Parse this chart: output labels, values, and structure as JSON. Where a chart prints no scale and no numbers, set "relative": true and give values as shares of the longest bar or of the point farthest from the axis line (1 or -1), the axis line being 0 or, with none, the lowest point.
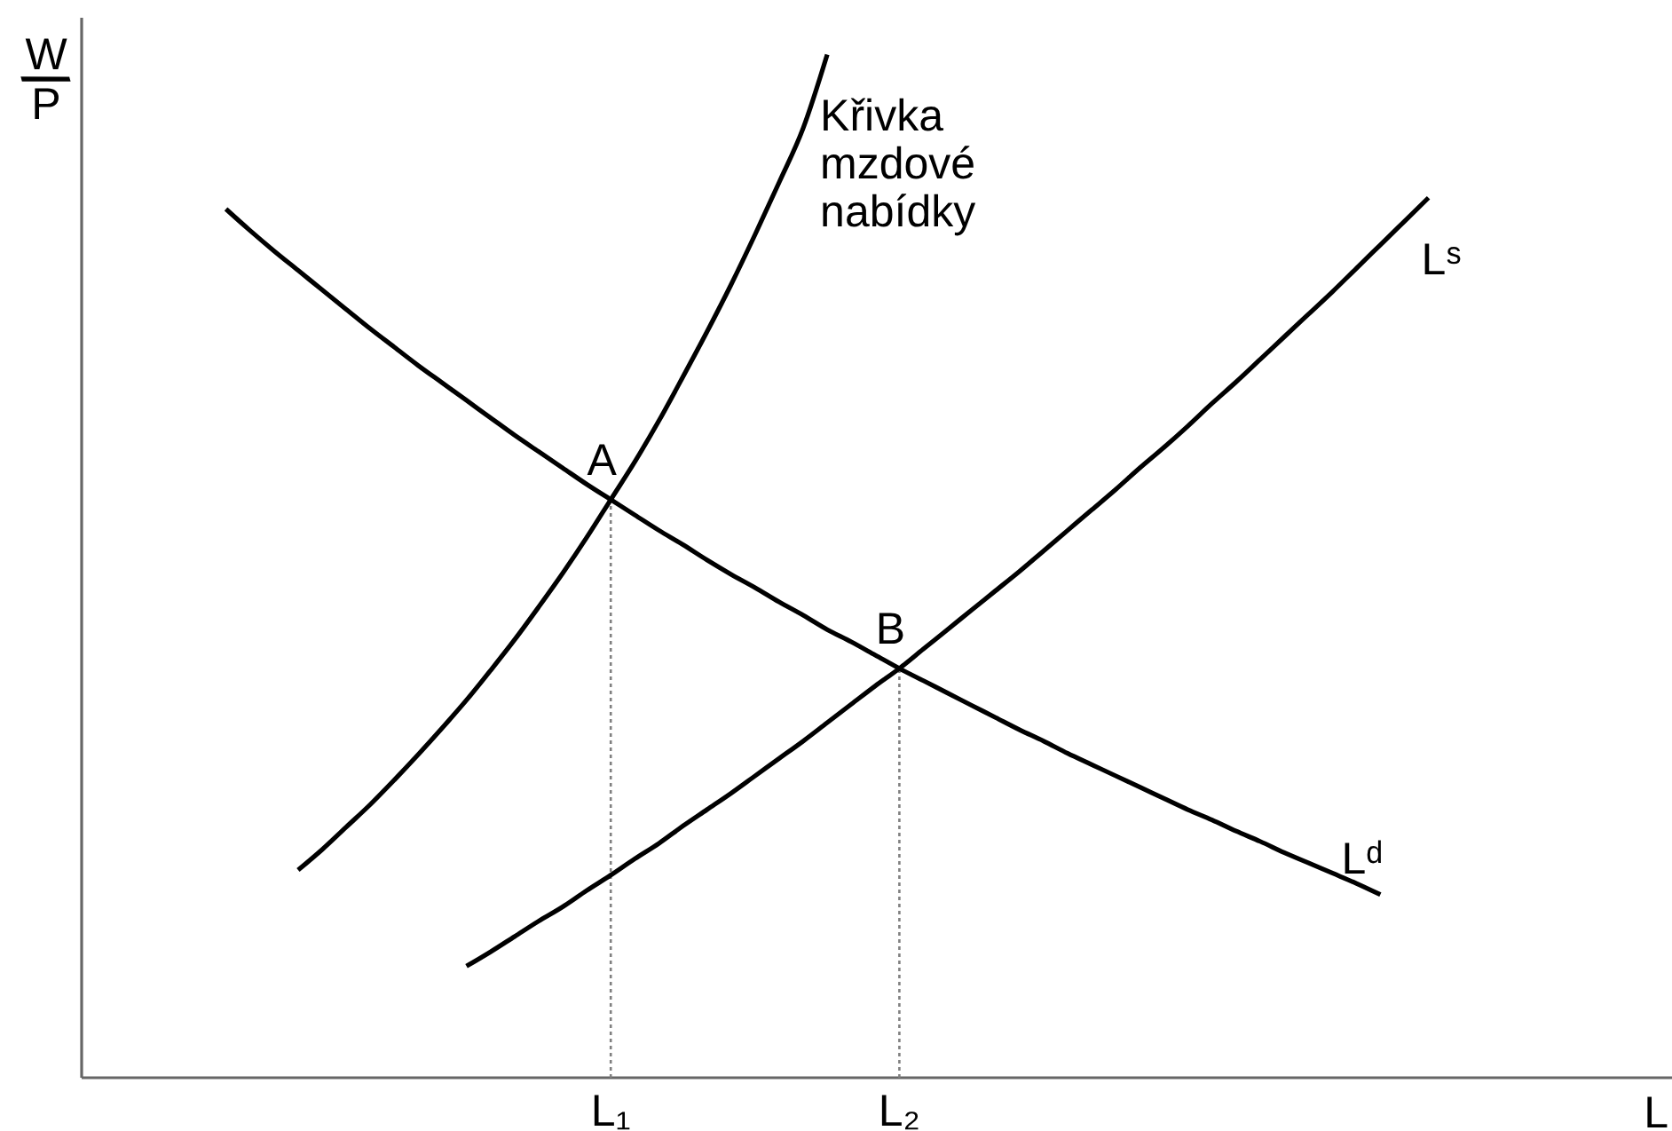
{
  "chart_data": {
    "type": "line",
    "relative": true,
    "ylabel": "W/P",
    "xlabel": "L",
    "categories": [
      null,
      null,
      null,
      null,
      null,
      null,
      null,
      null,
      null,
      null,
      null,
      null,
      null,
      null,
      null,
      null,
      "L₁",
      null,
      null,
      null,
      null,
      null,
      null,
      null,
      null,
      null,
      null,
      null,
      "L₂",
      null,
      null,
      null,
      null,
      null,
      null,
      null,
      null,
      null,
      null,
      null,
      null,
      null,
      null,
      null,
      null,
      null,
      null,
      null,
      null,
      null,
      null
    ],
    "series": [
      {
        "name": "Křivka mzdové nabídky",
        "color": "#000000",
        "values": [
          null,
          null,
          null,
          0.203,
          0.223,
          0.245,
          0.267,
          0.291,
          0.316,
          0.342,
          0.369,
          0.398,
          0.428,
          0.46,
          0.493,
          0.528,
          0.565,
          0.602,
          0.642,
          0.685,
          0.729,
          0.775,
          0.824,
          0.875,
          0.928,
          1.0,
          null,
          null,
          null,
          null,
          null,
          null,
          null,
          null,
          null,
          null,
          null,
          null,
          null,
          null,
          null,
          null,
          null,
          null,
          null,
          null,
          null,
          null,
          null,
          null,
          null
        ]
      },
      {
        "name": "Lᵈ",
        "color": "#000000",
        "values": [
          0.849,
          0.828,
          0.808,
          0.789,
          0.77,
          0.751,
          0.732,
          0.714,
          0.696,
          0.679,
          0.662,
          0.645,
          0.628,
          0.612,
          0.596,
          0.58,
          0.565,
          0.55,
          0.535,
          0.521,
          0.506,
          0.492,
          0.479,
          0.465,
          0.452,
          0.438,
          0.426,
          0.413,
          0.4,
          0.388,
          0.376,
          0.364,
          0.352,
          0.34,
          0.329,
          0.317,
          0.306,
          0.295,
          0.284,
          0.273,
          0.262,
          0.252,
          0.241,
          0.231,
          0.22,
          0.21,
          0.2,
          0.19,
          0.179,
          null,
          null
        ]
      },
      {
        "name": "Lˢ",
        "color": "#000000",
        "values": [
          null,
          null,
          null,
          null,
          null,
          null,
          null,
          null,
          null,
          null,
          0.109,
          0.123,
          0.138,
          0.153,
          0.167,
          0.183,
          0.198,
          0.214,
          0.229,
          0.246,
          0.262,
          0.278,
          0.295,
          0.312,
          0.329,
          0.347,
          0.365,
          0.383,
          0.4,
          0.419,
          0.438,
          0.457,
          0.476,
          0.495,
          0.515,
          0.535,
          0.555,
          0.575,
          0.596,
          0.616,
          0.637,
          0.659,
          0.68,
          0.702,
          0.724,
          0.746,
          0.768,
          0.791,
          0.814,
          0.837,
          0.86
        ]
      }
    ],
    "ref_lines": [
      {
        "axis": "x",
        "value": "L₁",
        "color": "#808080",
        "line_style": "dotted"
      },
      {
        "axis": "x",
        "value": "L₂",
        "color": "#808080",
        "line_style": "dotted"
      }
    ],
    "annotations": [
      {
        "text": "A",
        "x": "L₁",
        "y": 0.565
      },
      {
        "text": "B",
        "x": "L₂",
        "y": 0.4
      }
    ]
  }
}
